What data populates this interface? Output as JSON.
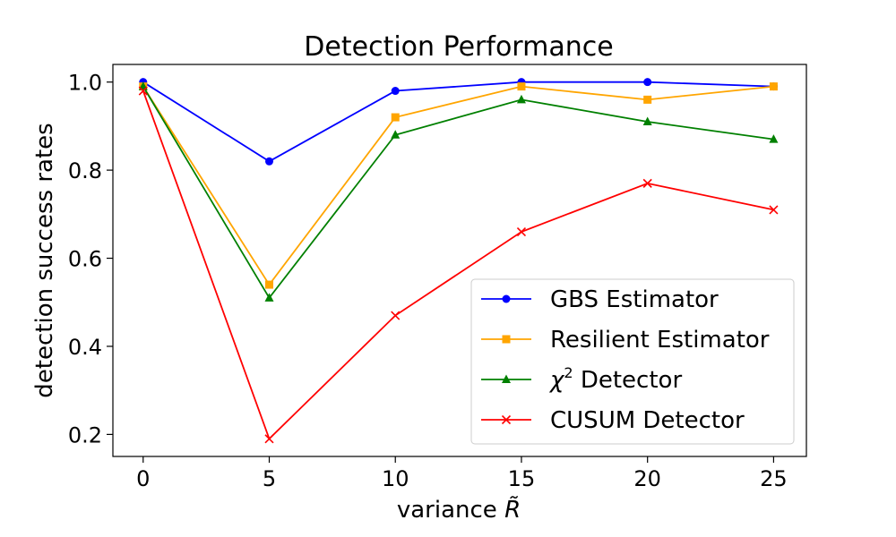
{
  "chart_data": {
    "type": "line",
    "title": "Detection Performance",
    "xlabel": "variance",
    "xlabel_symbol": "R̃",
    "ylabel": "detection success rates",
    "x": [
      0,
      5,
      10,
      15,
      20,
      25
    ],
    "xlim": [
      -1.2,
      26.3
    ],
    "ylim": [
      0.15,
      1.04
    ],
    "xticks": [
      0,
      5,
      10,
      15,
      20,
      25
    ],
    "yticks": [
      0.2,
      0.4,
      0.6,
      0.8,
      1.0
    ],
    "xtick_labels": [
      "0",
      "5",
      "10",
      "15",
      "20",
      "25"
    ],
    "ytick_labels": [
      "0.2",
      "0.4",
      "0.6",
      "0.8",
      "1.0"
    ],
    "legend_position": "lower-right",
    "series": [
      {
        "name": "GBS Estimator",
        "color": "#0000ff",
        "marker": "circle",
        "values": [
          1.0,
          0.82,
          0.98,
          1.0,
          1.0,
          0.99
        ]
      },
      {
        "name": "Resilient Estimator",
        "color": "#ffa500",
        "marker": "square",
        "values": [
          0.99,
          0.54,
          0.92,
          0.99,
          0.96,
          0.99
        ]
      },
      {
        "name_symbol": "χ",
        "name_sup": "2",
        "name_rest": " Detector",
        "color": "#008000",
        "marker": "triangle",
        "values": [
          0.99,
          0.51,
          0.88,
          0.96,
          0.91,
          0.87
        ]
      },
      {
        "name": "CUSUM Detector",
        "color": "#ff0000",
        "marker": "x",
        "values": [
          0.98,
          0.19,
          0.47,
          0.66,
          0.77,
          0.71
        ]
      }
    ]
  }
}
